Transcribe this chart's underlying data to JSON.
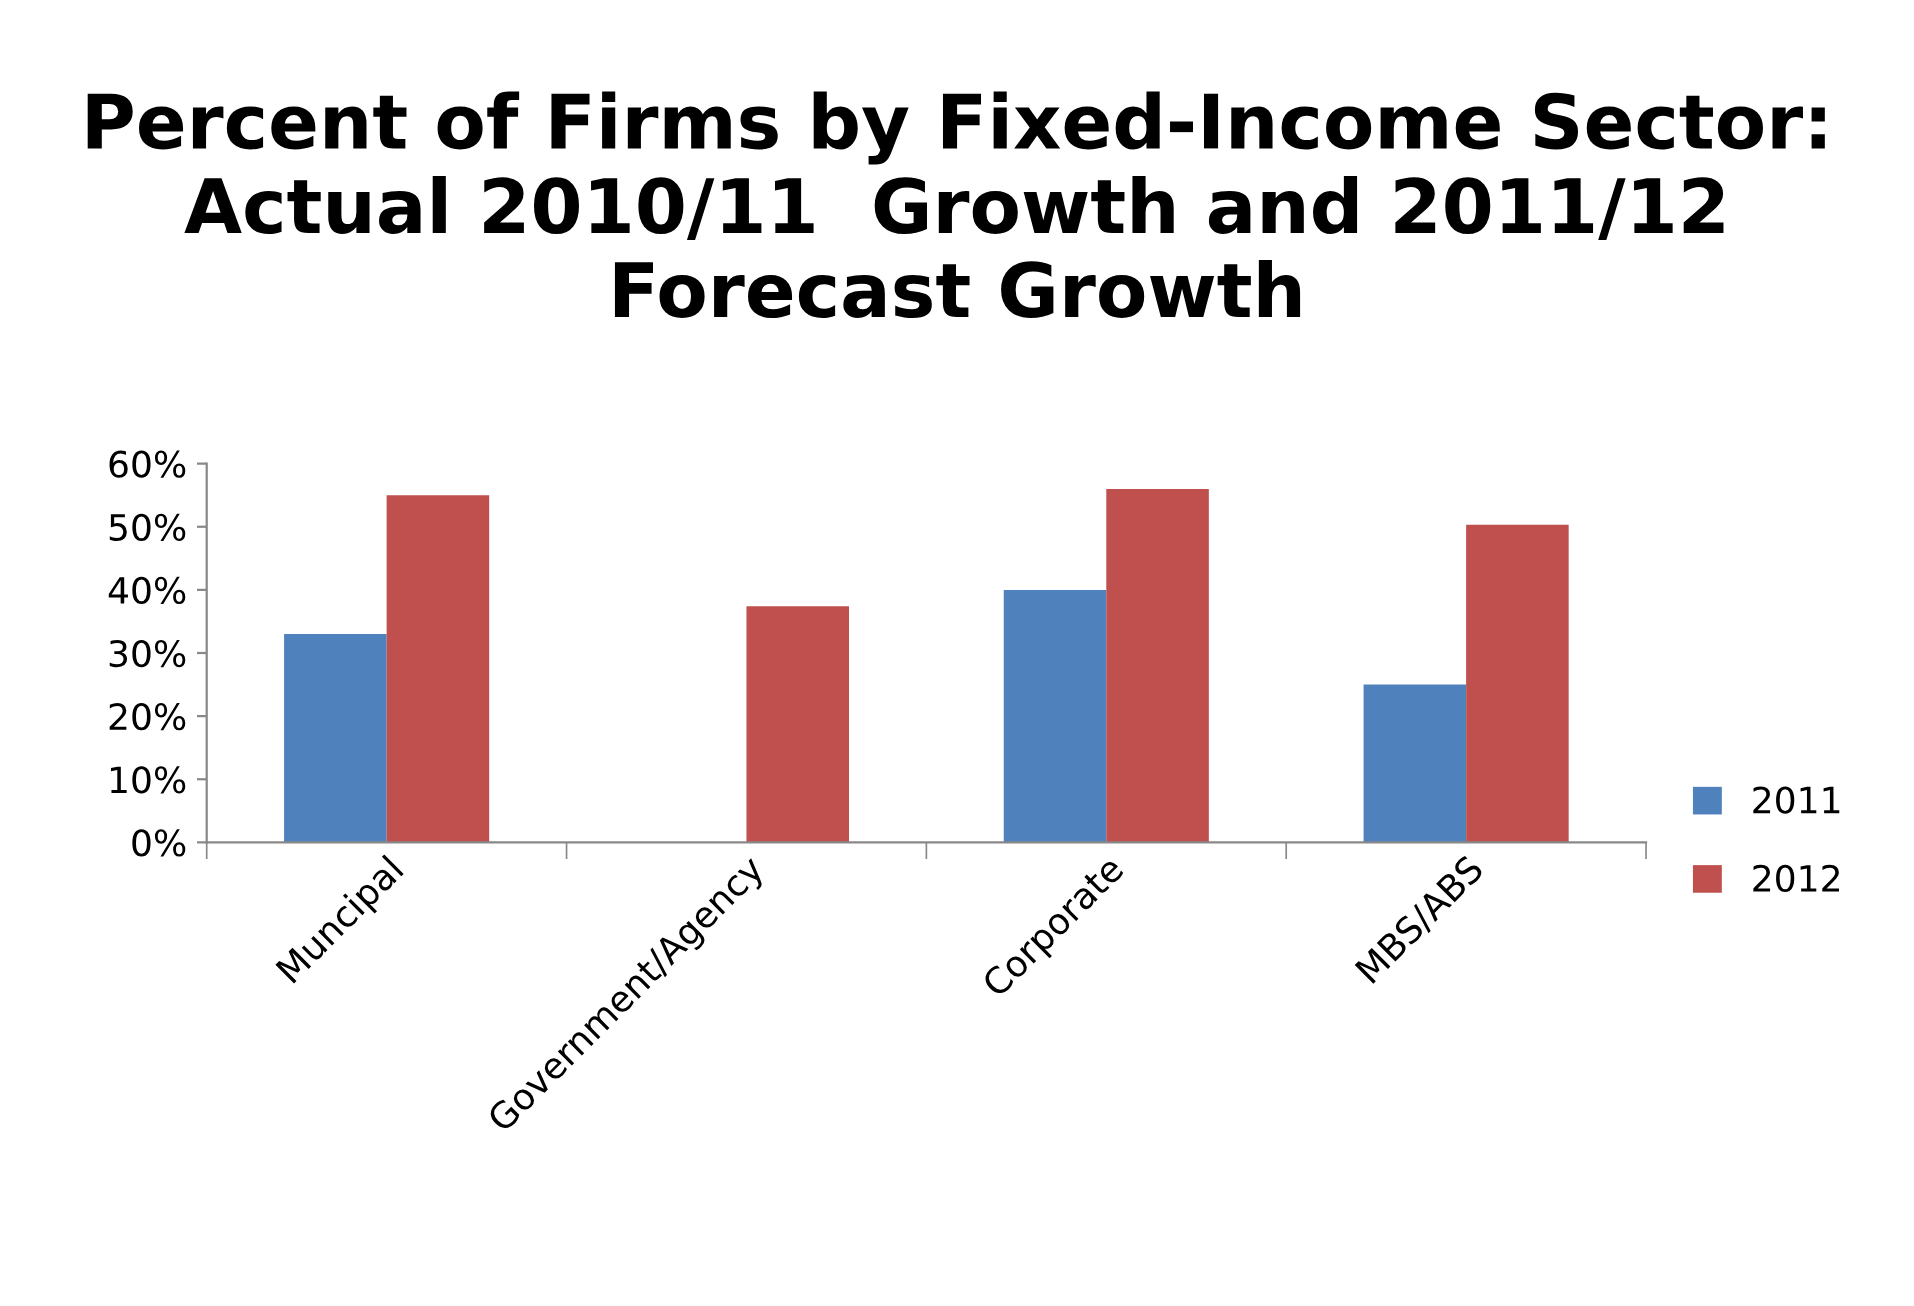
{
  "chart_data": {
    "type": "bar",
    "title": "Percent of Firms by Fixed-Income Sector: Actual 2010/11  Growth and 2011/12 Forecast Growth",
    "categories": [
      "Muncipal",
      "Government/Agency",
      "Corporate",
      "MBS/ABS"
    ],
    "series": [
      {
        "name": "2011",
        "color": "#4f81bd",
        "values": [
          33,
          0,
          40,
          25
        ]
      },
      {
        "name": "2012",
        "color": "#c0504d",
        "values": [
          55,
          37.4,
          56,
          50.3
        ]
      }
    ],
    "ylim": [
      0,
      60
    ],
    "yticks": [
      {
        "value": 0,
        "label": "0%"
      },
      {
        "value": 10,
        "label": "10%"
      },
      {
        "value": 20,
        "label": "20%"
      },
      {
        "value": 30,
        "label": "30%"
      },
      {
        "value": 40,
        "label": "40%"
      },
      {
        "value": 50,
        "label": "50%"
      },
      {
        "value": 60,
        "label": "60%"
      }
    ],
    "grid": false,
    "legend": "right"
  }
}
